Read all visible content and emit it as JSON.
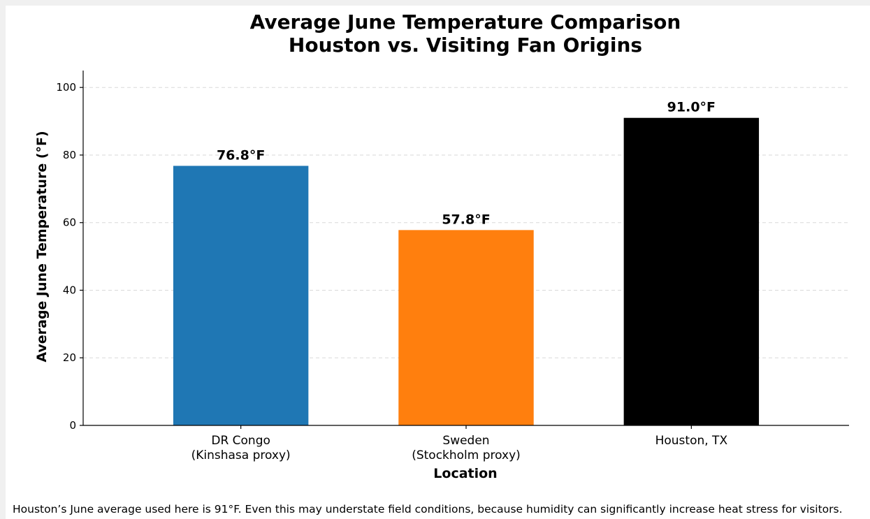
{
  "chart_data": {
    "type": "bar",
    "title_lines": [
      "Average June Temperature Comparison",
      "Houston vs. Visiting Fan Origins"
    ],
    "xlabel": "Location",
    "ylabel": "Average June Temperature (°F)",
    "categories": [
      [
        "DR Congo",
        "(Kinshasa proxy)"
      ],
      [
        "Sweden",
        "(Stockholm proxy)"
      ],
      [
        "Houston, TX"
      ]
    ],
    "values": [
      76.8,
      57.8,
      91.0
    ],
    "value_labels": [
      "76.8°F",
      "57.8°F",
      "91.0°F"
    ],
    "colors": [
      "#1f77b4",
      "#ff7f0e",
      "#000000"
    ],
    "ylim": [
      0,
      105
    ],
    "yticks": [
      0,
      20,
      40,
      60,
      80,
      100
    ],
    "grid": "y-dashed"
  },
  "footnote": "Houston’s June average used here is 91°F. Even this may understate field conditions, because humidity can significantly increase heat stress for visitors."
}
